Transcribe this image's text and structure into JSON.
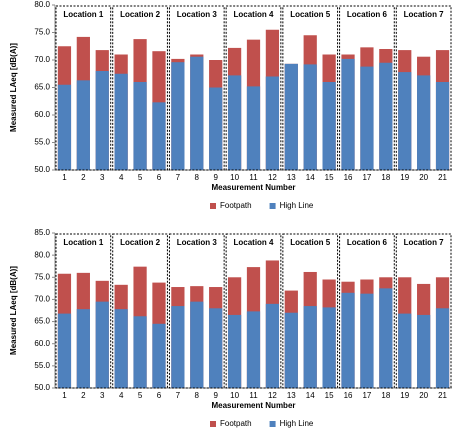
{
  "chart_data": [
    {
      "type": "bar",
      "overlap": true,
      "y_label": "Measured LAeq [dB(A)]",
      "x_label": "Measurement Number",
      "categories": [
        "1",
        "2",
        "3",
        "4",
        "5",
        "6",
        "7",
        "8",
        "9",
        "10",
        "11",
        "12",
        "13",
        "14",
        "15",
        "16",
        "17",
        "18",
        "19",
        "20",
        "21"
      ],
      "groups": [
        "Location 1",
        "Location 2",
        "Location 3",
        "Location 4",
        "Location 5",
        "Location 6",
        "Location 7"
      ],
      "series": [
        {
          "name": "Footpath",
          "color": "#c0504d",
          "values": [
            72.5,
            74.2,
            71.8,
            71,
            73.8,
            71.6,
            70.2,
            71,
            70,
            72.2,
            73.7,
            75.5,
            69.3,
            74.5,
            71,
            71,
            72.3,
            72,
            71.8,
            70.6,
            71.8
          ]
        },
        {
          "name": "High Line",
          "color": "#4f81bd",
          "values": [
            65.5,
            66.3,
            68,
            67.5,
            66,
            62.3,
            69.6,
            70.6,
            65,
            67.2,
            65.2,
            67,
            69.3,
            69.2,
            66,
            70.2,
            68.8,
            69.5,
            67.8,
            67.2,
            66
          ]
        }
      ],
      "ylim": [
        50,
        80
      ],
      "yticks": [
        {
          "value": 50,
          "label": "50.0"
        },
        {
          "value": 55,
          "label": "55.0"
        },
        {
          "value": 60,
          "label": "60.0"
        },
        {
          "value": 65,
          "label": "65.0"
        },
        {
          "value": 70,
          "label": "70.0"
        },
        {
          "value": 75,
          "label": "75.0"
        },
        {
          "value": 80,
          "label": "80.0"
        }
      ]
    },
    {
      "type": "bar",
      "overlap": true,
      "y_label": "Measured LAeq [dB(A)]",
      "x_label": "Measurement Number",
      "categories": [
        "1",
        "2",
        "3",
        "4",
        "5",
        "6",
        "7",
        "8",
        "9",
        "10",
        "11",
        "12",
        "13",
        "14",
        "15",
        "16",
        "17",
        "18",
        "19",
        "20",
        "21"
      ],
      "groups": [
        "Location 1",
        "Location 2",
        "Location 3",
        "Location 4",
        "Location 5",
        "Location 6",
        "Location 7"
      ],
      "series": [
        {
          "name": "Footpath",
          "color": "#c0504d",
          "values": [
            75.8,
            76,
            74.2,
            73.3,
            77.4,
            73.8,
            72.8,
            73,
            72.8,
            75,
            77.3,
            78.8,
            72,
            76.2,
            74.5,
            74,
            74.5,
            75,
            75,
            73.5,
            75
          ]
        },
        {
          "name": "High Line",
          "color": "#4f81bd",
          "values": [
            66.8,
            67.8,
            69.5,
            67.8,
            66.2,
            64.5,
            68.5,
            69.5,
            68,
            66.5,
            67.3,
            69,
            67,
            68.5,
            68.2,
            71.5,
            71.3,
            72.5,
            66.8,
            66.5,
            68
          ]
        }
      ],
      "ylim": [
        50,
        85
      ],
      "yticks": [
        {
          "value": 50,
          "label": "50.0"
        },
        {
          "value": 55,
          "label": "55.0"
        },
        {
          "value": 60,
          "label": "60.0"
        },
        {
          "value": 65,
          "label": "65.0"
        },
        {
          "value": 70,
          "label": "70.0"
        },
        {
          "value": 75,
          "label": "75.0"
        },
        {
          "value": 80,
          "label": "80.0"
        },
        {
          "value": 85,
          "label": "85.0"
        }
      ]
    }
  ]
}
